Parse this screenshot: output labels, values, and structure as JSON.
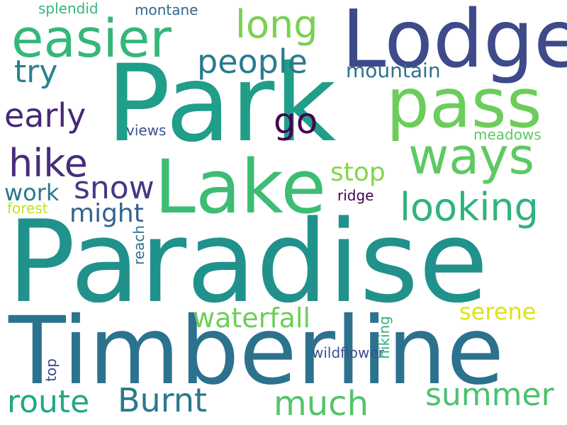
{
  "words": [
    {
      "id": "paradise",
      "text": "Paradise",
      "color": "#21918c"
    },
    {
      "id": "timberline",
      "text": "Timberline",
      "color": "#2c728e"
    },
    {
      "id": "park",
      "text": "Park",
      "color": "#1f9e89"
    },
    {
      "id": "lodge",
      "text": "Lodge",
      "color": "#3e4a89"
    },
    {
      "id": "lake",
      "text": "Lake",
      "color": "#3dbc74"
    },
    {
      "id": "pass",
      "text": "pass",
      "color": "#6ccd5a"
    },
    {
      "id": "easier",
      "text": "easier",
      "color": "#35b779"
    },
    {
      "id": "ways",
      "text": "ways",
      "color": "#5ec962"
    },
    {
      "id": "looking",
      "text": "looking",
      "color": "#2fb47c"
    },
    {
      "id": "hike",
      "text": "hike",
      "color": "#472d7b"
    },
    {
      "id": "snow",
      "text": "snow",
      "color": "#443983"
    },
    {
      "id": "long",
      "text": "long",
      "color": "#7ad151"
    },
    {
      "id": "people",
      "text": "people",
      "color": "#287c8e"
    },
    {
      "id": "early",
      "text": "early",
      "color": "#482878"
    },
    {
      "id": "go",
      "text": "go",
      "color": "#440154"
    },
    {
      "id": "try",
      "text": "try",
      "color": "#26828e"
    },
    {
      "id": "might",
      "text": "might",
      "color": "#33638d"
    },
    {
      "id": "work",
      "text": "work",
      "color": "#2a788e"
    },
    {
      "id": "stop",
      "text": "stop",
      "color": "#86d549"
    },
    {
      "id": "mountain",
      "text": "mountain",
      "color": "#2d708e"
    },
    {
      "id": "waterfall",
      "text": "waterfall",
      "color": "#6ece58"
    },
    {
      "id": "serene",
      "text": "serene",
      "color": "#dde318"
    },
    {
      "id": "summer",
      "text": "summer",
      "color": "#4ac16d"
    },
    {
      "id": "burnt",
      "text": "Burnt",
      "color": "#2a788e"
    },
    {
      "id": "route",
      "text": "route",
      "color": "#22a884"
    },
    {
      "id": "much",
      "text": "much",
      "color": "#52c569"
    },
    {
      "id": "ridge",
      "text": "ridge",
      "color": "#440154"
    },
    {
      "id": "meadows",
      "text": "meadows",
      "color": "#5ec962"
    },
    {
      "id": "views",
      "text": "views",
      "color": "#3b528b"
    },
    {
      "id": "forest",
      "text": "forest",
      "color": "#c2df23"
    },
    {
      "id": "splendid",
      "text": "splendid",
      "color": "#35b779"
    },
    {
      "id": "montane",
      "text": "montane",
      "color": "#31688e"
    },
    {
      "id": "wildflower",
      "text": "wildflower",
      "color": "#3b528b"
    },
    {
      "id": "reach",
      "text": "reach",
      "color": "#2c728e"
    },
    {
      "id": "hiking",
      "text": "hiking",
      "color": "#2db27d"
    },
    {
      "id": "top",
      "text": "top",
      "color": "#3e4989"
    }
  ]
}
